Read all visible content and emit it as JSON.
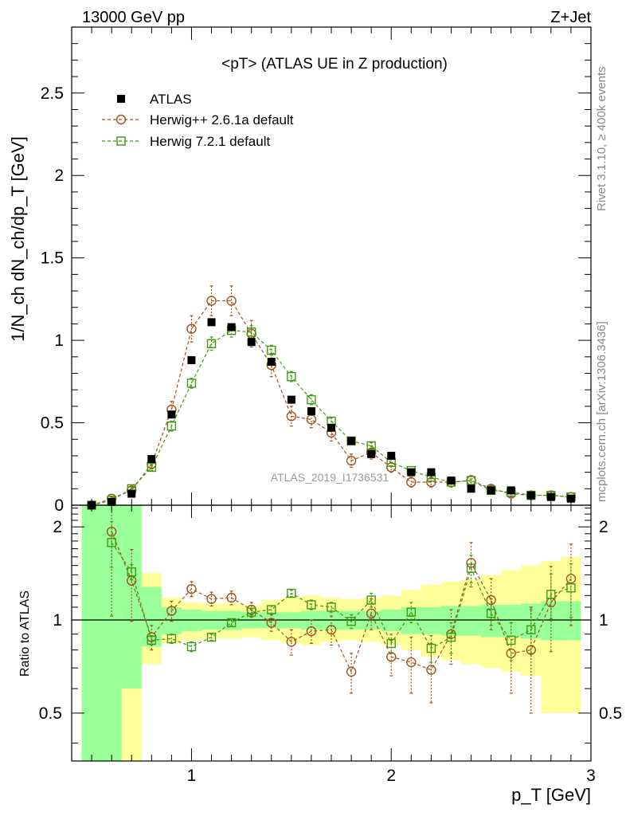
{
  "header": {
    "left": "13000 GeV pp",
    "right": "Z+Jet"
  },
  "plot_title": "<pT> (ATLAS UE in Z production)",
  "side_labels": {
    "rivet": "Rivet 3.1.10, ≥ 400k events",
    "mcplots": "mcplots.cern.ch [arXiv:1306.3436]"
  },
  "watermark": "ATLAS_2019_I1736531",
  "ylabel_main": "1/N_ch dN_ch/dp_T [GeV]",
  "ylabel_ratio": "Ratio to ATLAS",
  "xlabel": "p_T [GeV]",
  "colors": {
    "data": "#000000",
    "herwigpp": "#a0521b",
    "herwig7": "#3e9b11",
    "band_green": "#99ff99",
    "band_yellow": "#ffff99"
  },
  "chart_data": {
    "type": "scatter",
    "xlim": [
      0.4,
      3.0
    ],
    "main_ylim": [
      0,
      2.9
    ],
    "ratio_ylim": [
      0.35,
      2.35
    ],
    "main_yticks": [
      "0",
      "0.5",
      "1",
      "1.5",
      "2",
      "2.5"
    ],
    "ratio_yticks": [
      "0.5",
      "1",
      "2"
    ],
    "xticks": [
      "1",
      "2",
      "3"
    ],
    "x": [
      0.5,
      0.6,
      0.7,
      0.8,
      0.9,
      1.0,
      1.1,
      1.2,
      1.3,
      1.4,
      1.5,
      1.6,
      1.7,
      1.8,
      1.9,
      2.0,
      2.1,
      2.2,
      2.3,
      2.4,
      2.5,
      2.6,
      2.7,
      2.8,
      2.9
    ],
    "series": [
      {
        "name": "ATLAS",
        "marker": "filled-square",
        "values": [
          0.0,
          0.02,
          0.07,
          0.28,
          0.55,
          0.88,
          1.11,
          1.08,
          0.99,
          0.87,
          0.64,
          0.57,
          0.47,
          0.39,
          0.31,
          0.3,
          0.2,
          0.2,
          0.15,
          0.1,
          0.09,
          0.09,
          0.06,
          0.05,
          0.04
        ]
      },
      {
        "name": "Herwig++ 2.6.1a default",
        "marker": "open-circle",
        "values": [
          0.0,
          0.04,
          0.09,
          0.25,
          0.58,
          1.07,
          1.24,
          1.24,
          1.04,
          0.85,
          0.54,
          0.52,
          0.44,
          0.27,
          0.32,
          0.23,
          0.14,
          0.14,
          0.14,
          0.15,
          0.1,
          0.07,
          0.06,
          0.06,
          0.05
        ],
        "errors": [
          0.0,
          0.01,
          0.01,
          0.03,
          0.05,
          0.08,
          0.09,
          0.09,
          0.08,
          0.07,
          0.06,
          0.05,
          0.05,
          0.04,
          0.04,
          0.03,
          0.03,
          0.03,
          0.03,
          0.03,
          0.02,
          0.02,
          0.02,
          0.02,
          0.01
        ],
        "ratio": [
          null,
          1.93,
          1.34,
          0.88,
          1.07,
          1.26,
          1.17,
          1.18,
          1.08,
          0.98,
          0.85,
          0.92,
          0.93,
          0.68,
          1.05,
          0.76,
          0.73,
          0.69,
          0.9,
          1.53,
          1.16,
          0.78,
          0.8,
          1.14,
          1.36
        ],
        "ratio_errors": [
          null,
          0.9,
          0.35,
          0.08,
          0.08,
          0.07,
          0.06,
          0.06,
          0.06,
          0.06,
          0.08,
          0.08,
          0.1,
          0.1,
          0.12,
          0.1,
          0.15,
          0.15,
          0.18,
          0.25,
          0.2,
          0.2,
          0.3,
          0.35,
          0.4
        ]
      },
      {
        "name": "Herwig 7.2.1 default",
        "marker": "open-square",
        "values": [
          0.0,
          0.03,
          0.1,
          0.23,
          0.48,
          0.74,
          0.98,
          1.06,
          1.05,
          0.94,
          0.78,
          0.64,
          0.51,
          0.39,
          0.36,
          0.26,
          0.21,
          0.17,
          0.14,
          0.15,
          0.09,
          0.08,
          0.06,
          0.06,
          0.05
        ],
        "errors": [
          0.0,
          0.01,
          0.01,
          0.02,
          0.03,
          0.03,
          0.04,
          0.04,
          0.04,
          0.03,
          0.03,
          0.03,
          0.02,
          0.02,
          0.02,
          0.02,
          0.01,
          0.01,
          0.01,
          0.01,
          0.01,
          0.01,
          0.01,
          0.01,
          0.01
        ],
        "ratio": [
          null,
          1.78,
          1.43,
          0.86,
          0.87,
          0.82,
          0.88,
          0.98,
          1.06,
          1.08,
          1.22,
          1.12,
          1.1,
          0.99,
          1.16,
          0.84,
          1.06,
          0.81,
          0.88,
          1.47,
          1.05,
          0.86,
          0.93,
          1.21,
          1.27
        ],
        "ratio_errors": [
          null,
          0.3,
          0.08,
          0.03,
          0.03,
          0.03,
          0.02,
          0.02,
          0.02,
          0.03,
          0.03,
          0.04,
          0.04,
          0.05,
          0.06,
          0.06,
          0.08,
          0.08,
          0.1,
          0.15,
          0.12,
          0.12,
          0.15,
          0.2,
          0.25
        ]
      }
    ],
    "bands": {
      "edges": [
        0.45,
        0.65,
        0.75,
        0.85,
        0.95,
        1.05,
        1.15,
        1.25,
        1.35,
        1.45,
        1.55,
        1.65,
        1.75,
        1.85,
        1.95,
        2.05,
        2.15,
        2.25,
        2.35,
        2.45,
        2.55,
        2.65,
        2.75,
        2.85,
        2.95
      ],
      "green_lo": [
        0.35,
        0.6,
        0.82,
        0.9,
        0.92,
        0.93,
        0.93,
        0.94,
        0.94,
        0.94,
        0.93,
        0.93,
        0.93,
        0.93,
        0.92,
        0.9,
        0.9,
        0.89,
        0.89,
        0.88,
        0.88,
        0.87,
        0.86,
        0.86
      ],
      "green_hi": [
        2.35,
        2.35,
        1.28,
        1.1,
        1.08,
        1.07,
        1.07,
        1.06,
        1.06,
        1.06,
        1.07,
        1.07,
        1.07,
        1.07,
        1.08,
        1.1,
        1.1,
        1.11,
        1.11,
        1.12,
        1.12,
        1.13,
        1.15,
        1.15
      ],
      "yellow_lo": [
        0.35,
        0.35,
        0.72,
        0.84,
        0.86,
        0.87,
        0.87,
        0.88,
        0.86,
        0.84,
        0.83,
        0.85,
        0.86,
        0.85,
        0.83,
        0.8,
        0.76,
        0.74,
        0.72,
        0.7,
        0.68,
        0.66,
        0.5,
        0.5
      ],
      "yellow_hi": [
        2.35,
        2.35,
        1.42,
        1.18,
        1.14,
        1.13,
        1.13,
        1.12,
        1.16,
        1.18,
        1.2,
        1.18,
        1.17,
        1.18,
        1.2,
        1.25,
        1.3,
        1.33,
        1.35,
        1.4,
        1.45,
        1.5,
        1.55,
        1.6
      ]
    }
  }
}
